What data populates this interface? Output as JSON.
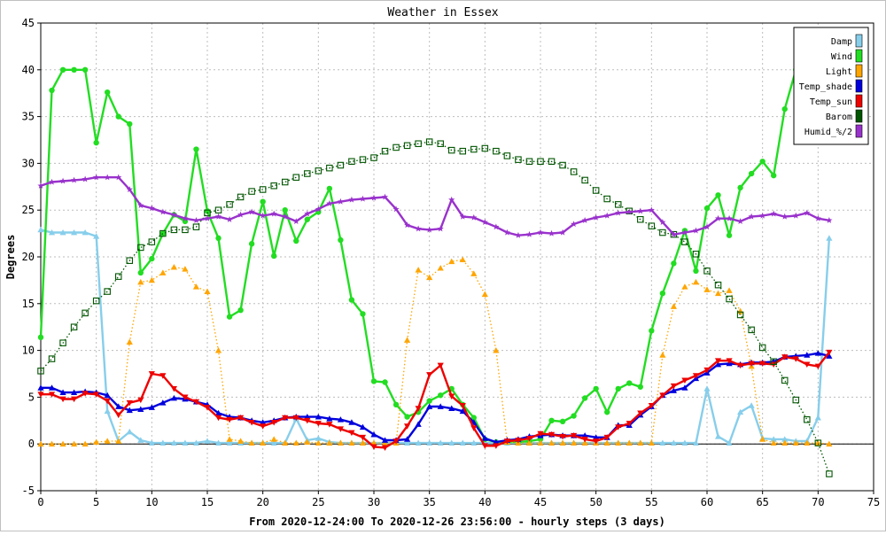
{
  "chart_data": {
    "type": "line",
    "title": "Weather in Essex",
    "xlabel": "From 2020-12-24:00 To 2020-12-26 23:56:00 - hourly steps (3 days)",
    "ylabel": "Degrees",
    "xlim": [
      0,
      75
    ],
    "ylim": [
      -5,
      45
    ],
    "x_ticks": [
      0,
      5,
      10,
      15,
      20,
      25,
      30,
      35,
      40,
      45,
      50,
      55,
      60,
      65,
      70,
      75
    ],
    "y_ticks": [
      -5,
      0,
      5,
      10,
      15,
      20,
      25,
      30,
      35,
      40,
      45
    ],
    "grid": true,
    "legend_position": "top-right",
    "x": [
      0,
      1,
      2,
      3,
      4,
      5,
      6,
      7,
      8,
      9,
      10,
      11,
      12,
      13,
      14,
      15,
      16,
      17,
      18,
      19,
      20,
      21,
      22,
      23,
      24,
      25,
      26,
      27,
      28,
      29,
      30,
      31,
      32,
      33,
      34,
      35,
      36,
      37,
      38,
      39,
      40,
      41,
      42,
      43,
      44,
      45,
      46,
      47,
      48,
      49,
      50,
      51,
      52,
      53,
      54,
      55,
      56,
      57,
      58,
      59,
      60,
      61,
      62,
      63,
      64,
      65,
      66,
      67,
      68,
      69,
      70,
      71
    ],
    "series": [
      {
        "name": "Damp",
        "color": "#87ceeb",
        "marker": "triangle",
        "line_style": "solid",
        "values": [
          22.9,
          22.6,
          22.6,
          22.6,
          22.6,
          22.2,
          3.5,
          0.3,
          1.3,
          0.4,
          0.1,
          0.1,
          0.1,
          0.1,
          0.1,
          0.3,
          0.1,
          0.1,
          0.1,
          0.1,
          0.1,
          0.1,
          0.1,
          2.7,
          0.4,
          0.6,
          0.2,
          0.1,
          0.1,
          0.1,
          0.1,
          0.1,
          0.1,
          0.1,
          0.1,
          0.1,
          0.1,
          0.1,
          0.1,
          0.1,
          0.1,
          0.1,
          0.1,
          0.1,
          0.1,
          0.1,
          0.1,
          0.1,
          0.1,
          0.1,
          0.1,
          0.1,
          0.1,
          0.1,
          0.1,
          0.1,
          0.1,
          0.1,
          0.1,
          0.1,
          5.9,
          0.8,
          0.1,
          3.4,
          4.1,
          0.6,
          0.5,
          0.5,
          0.3,
          0.3,
          2.8,
          22.0
        ]
      },
      {
        "name": "Wind",
        "color": "#22dd22",
        "marker": "circle",
        "line_style": "solid",
        "values": [
          11.4,
          37.8,
          40.0,
          40.0,
          40.0,
          32.2,
          37.6,
          35.0,
          34.2,
          18.3,
          19.8,
          22.5,
          24.5,
          23.8,
          31.5,
          24.9,
          22.0,
          13.6,
          14.3,
          21.4,
          25.9,
          20.1,
          25.0,
          21.7,
          24.0,
          24.8,
          27.3,
          21.8,
          15.4,
          13.9,
          6.7,
          6.6,
          4.2,
          2.9,
          3.4,
          4.6,
          5.2,
          5.9,
          4.2,
          2.8,
          0.5,
          0.2,
          0.2,
          0.2,
          0.3,
          0.5,
          2.5,
          2.4,
          3.0,
          4.9,
          5.9,
          3.4,
          5.9,
          6.5,
          6.1,
          12.1,
          16.1,
          19.3,
          22.8,
          18.5,
          25.2,
          26.6,
          22.3,
          27.4,
          28.9,
          30.2,
          28.7,
          35.8,
          40.0,
          null,
          null,
          null
        ]
      },
      {
        "name": "Light",
        "color": "#ffa500",
        "marker": "triangle",
        "line_style": "dotted",
        "values": [
          0.0,
          0.0,
          0.0,
          0.0,
          0.0,
          0.2,
          0.3,
          0.3,
          10.9,
          17.3,
          17.5,
          18.3,
          18.9,
          18.7,
          16.8,
          16.3,
          10.0,
          0.5,
          0.3,
          0.1,
          0.1,
          0.5,
          0.1,
          0.1,
          0.2,
          0.1,
          0.1,
          0.1,
          0.1,
          0.1,
          0.1,
          0.1,
          0.1,
          11.1,
          18.6,
          17.8,
          18.8,
          19.5,
          19.7,
          18.2,
          16.0,
          10.0,
          0.2,
          0.1,
          0.1,
          0.1,
          0.1,
          0.1,
          0.1,
          0.1,
          0.1,
          0.1,
          0.1,
          0.1,
          0.1,
          0.1,
          9.5,
          14.7,
          16.8,
          17.3,
          16.5,
          16.1,
          16.4,
          14.2,
          8.3,
          0.5,
          0.1,
          0.1,
          0.1,
          0.1,
          0.1,
          0.0
        ]
      },
      {
        "name": "Temp_shade",
        "color": "#0000dd",
        "marker": "triangle",
        "line_style": "solid",
        "values": [
          6.0,
          6.0,
          5.5,
          5.5,
          5.6,
          5.5,
          5.2,
          4.0,
          3.6,
          3.7,
          3.9,
          4.4,
          4.9,
          4.8,
          4.5,
          4.2,
          3.3,
          2.9,
          2.8,
          2.5,
          2.3,
          2.5,
          2.8,
          2.9,
          2.9,
          2.9,
          2.7,
          2.6,
          2.3,
          1.8,
          1.0,
          0.4,
          0.4,
          0.5,
          2.1,
          4.0,
          4.0,
          3.8,
          3.5,
          2.3,
          0.6,
          0.2,
          0.4,
          0.5,
          0.8,
          0.9,
          1.0,
          0.9,
          0.9,
          0.9,
          0.7,
          0.7,
          2.0,
          2.0,
          3.1,
          4.0,
          5.2,
          5.7,
          6.0,
          7.0,
          7.6,
          8.5,
          8.6,
          8.5,
          8.7,
          8.7,
          8.8,
          9.3,
          9.4,
          9.5,
          9.7,
          9.4
        ]
      },
      {
        "name": "Temp_sun",
        "color": "#ee0000",
        "marker": "triangle-down",
        "line_style": "solid",
        "values": [
          5.3,
          5.3,
          4.8,
          4.8,
          5.4,
          5.3,
          4.6,
          3.1,
          4.4,
          4.7,
          7.5,
          7.3,
          5.9,
          5.0,
          4.5,
          3.9,
          2.8,
          2.6,
          2.8,
          2.3,
          1.9,
          2.3,
          2.8,
          2.8,
          2.5,
          2.2,
          2.1,
          1.6,
          1.2,
          0.7,
          -0.3,
          -0.4,
          0.3,
          1.9,
          3.8,
          7.4,
          8.4,
          5.1,
          4.1,
          1.7,
          -0.2,
          -0.2,
          0.3,
          0.4,
          0.6,
          1.1,
          1.0,
          0.8,
          0.9,
          0.5,
          0.3,
          0.7,
          1.8,
          2.2,
          3.3,
          4.1,
          5.2,
          6.2,
          6.8,
          7.3,
          7.9,
          8.9,
          8.9,
          8.4,
          8.6,
          8.6,
          8.5,
          9.3,
          9.1,
          8.5,
          8.3,
          9.8
        ]
      },
      {
        "name": "Barom",
        "color": "#005500",
        "marker": "square",
        "line_style": "dotted",
        "values": [
          7.8,
          9.1,
          10.8,
          12.5,
          14.0,
          15.3,
          16.3,
          17.9,
          19.6,
          21.0,
          21.6,
          22.5,
          22.9,
          22.9,
          23.2,
          24.7,
          25.0,
          25.6,
          26.4,
          27.0,
          27.2,
          27.6,
          28.0,
          28.5,
          28.9,
          29.2,
          29.5,
          29.8,
          30.2,
          30.4,
          30.6,
          31.3,
          31.7,
          31.9,
          32.1,
          32.3,
          32.1,
          31.4,
          31.3,
          31.5,
          31.6,
          31.3,
          30.8,
          30.4,
          30.2,
          30.2,
          30.2,
          29.8,
          29.1,
          28.2,
          27.1,
          26.2,
          25.6,
          24.9,
          24.0,
          23.3,
          22.6,
          22.4,
          21.6,
          20.3,
          18.5,
          17.0,
          15.5,
          13.8,
          12.2,
          10.3,
          8.8,
          6.8,
          4.7,
          2.6,
          0.1,
          -3.2
        ]
      },
      {
        "name": "Humid_%/2",
        "color": "#9932cc",
        "marker": "star",
        "line_style": "solid",
        "values": [
          27.6,
          28.0,
          28.1,
          28.2,
          28.3,
          28.5,
          28.5,
          28.5,
          27.2,
          25.5,
          25.2,
          24.8,
          24.5,
          24.1,
          23.9,
          24.1,
          24.3,
          24.0,
          24.5,
          24.8,
          24.4,
          24.6,
          24.3,
          23.8,
          24.6,
          25.1,
          25.7,
          25.9,
          26.1,
          26.2,
          26.3,
          26.4,
          25.1,
          23.4,
          23.0,
          22.9,
          23.0,
          26.1,
          24.3,
          24.2,
          23.7,
          23.2,
          22.6,
          22.3,
          22.4,
          22.6,
          22.5,
          22.6,
          23.5,
          23.9,
          24.2,
          24.4,
          24.7,
          24.8,
          24.9,
          25.0,
          23.7,
          22.4,
          22.6,
          22.8,
          23.2,
          24.1,
          24.1,
          23.8,
          24.3,
          24.4,
          24.6,
          24.3,
          24.4,
          24.7,
          24.1,
          23.9
        ]
      }
    ]
  }
}
